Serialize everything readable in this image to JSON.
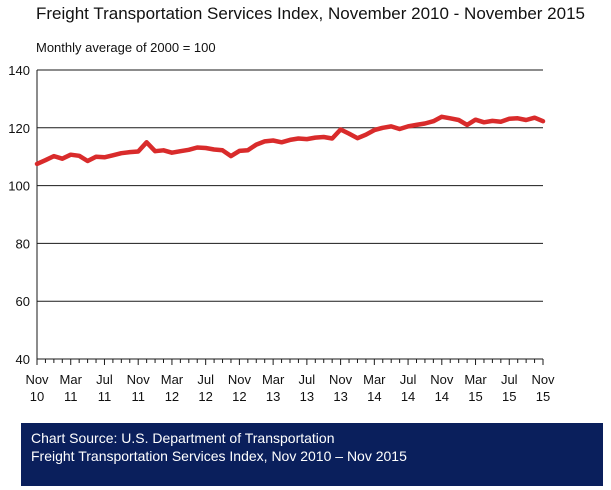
{
  "chart_data": {
    "type": "line",
    "title": "Freight Transportation Services Index, November 2010 - November 2015",
    "subtitle": "Monthly average of 2000 = 100",
    "xlabel": "",
    "ylabel": "",
    "ylim": [
      40,
      140
    ],
    "yticks": [
      40,
      60,
      80,
      100,
      120,
      140
    ],
    "grid": true,
    "x_tick_labels": [
      {
        "month": "Nov",
        "year": "10"
      },
      {
        "month": "Mar",
        "year": "11"
      },
      {
        "month": "Jul",
        "year": "11"
      },
      {
        "month": "Nov",
        "year": "11"
      },
      {
        "month": "Mar",
        "year": "12"
      },
      {
        "month": "Jul",
        "year": "12"
      },
      {
        "month": "Nov",
        "year": "12"
      },
      {
        "month": "Mar",
        "year": "13"
      },
      {
        "month": "Jul",
        "year": "13"
      },
      {
        "month": "Nov",
        "year": "13"
      },
      {
        "month": "Mar",
        "year": "14"
      },
      {
        "month": "Jul",
        "year": "14"
      },
      {
        "month": "Nov",
        "year": "14"
      },
      {
        "month": "Mar",
        "year": "15"
      },
      {
        "month": "Jul",
        "year": "15"
      },
      {
        "month": "Nov",
        "year": "15"
      }
    ],
    "series": [
      {
        "name": "Freight Transportation Services Index",
        "color": "#d92b2b",
        "values": [
          107.5,
          108.8,
          110.2,
          109.3,
          110.7,
          110.3,
          108.5,
          110.0,
          109.8,
          110.5,
          111.2,
          111.6,
          111.8,
          115.0,
          111.9,
          112.2,
          111.4,
          111.9,
          112.4,
          113.2,
          113.0,
          112.5,
          112.2,
          110.2,
          112.0,
          112.2,
          114.2,
          115.3,
          115.6,
          115.0,
          115.8,
          116.3,
          116.1,
          116.6,
          116.8,
          116.3,
          119.4,
          118.0,
          116.4,
          117.6,
          119.2,
          120.0,
          120.5,
          119.6,
          120.5,
          121.0,
          121.5,
          122.3,
          123.8,
          123.3,
          122.7,
          121.0,
          122.8,
          121.9,
          122.4,
          122.1,
          123.1,
          123.3,
          122.7,
          123.5,
          122.3
        ]
      }
    ]
  },
  "source": {
    "line1": "Chart Source: U.S. Department of Transportation",
    "line2": "Freight Transportation Services Index, Nov 2010 – Nov 2015"
  }
}
